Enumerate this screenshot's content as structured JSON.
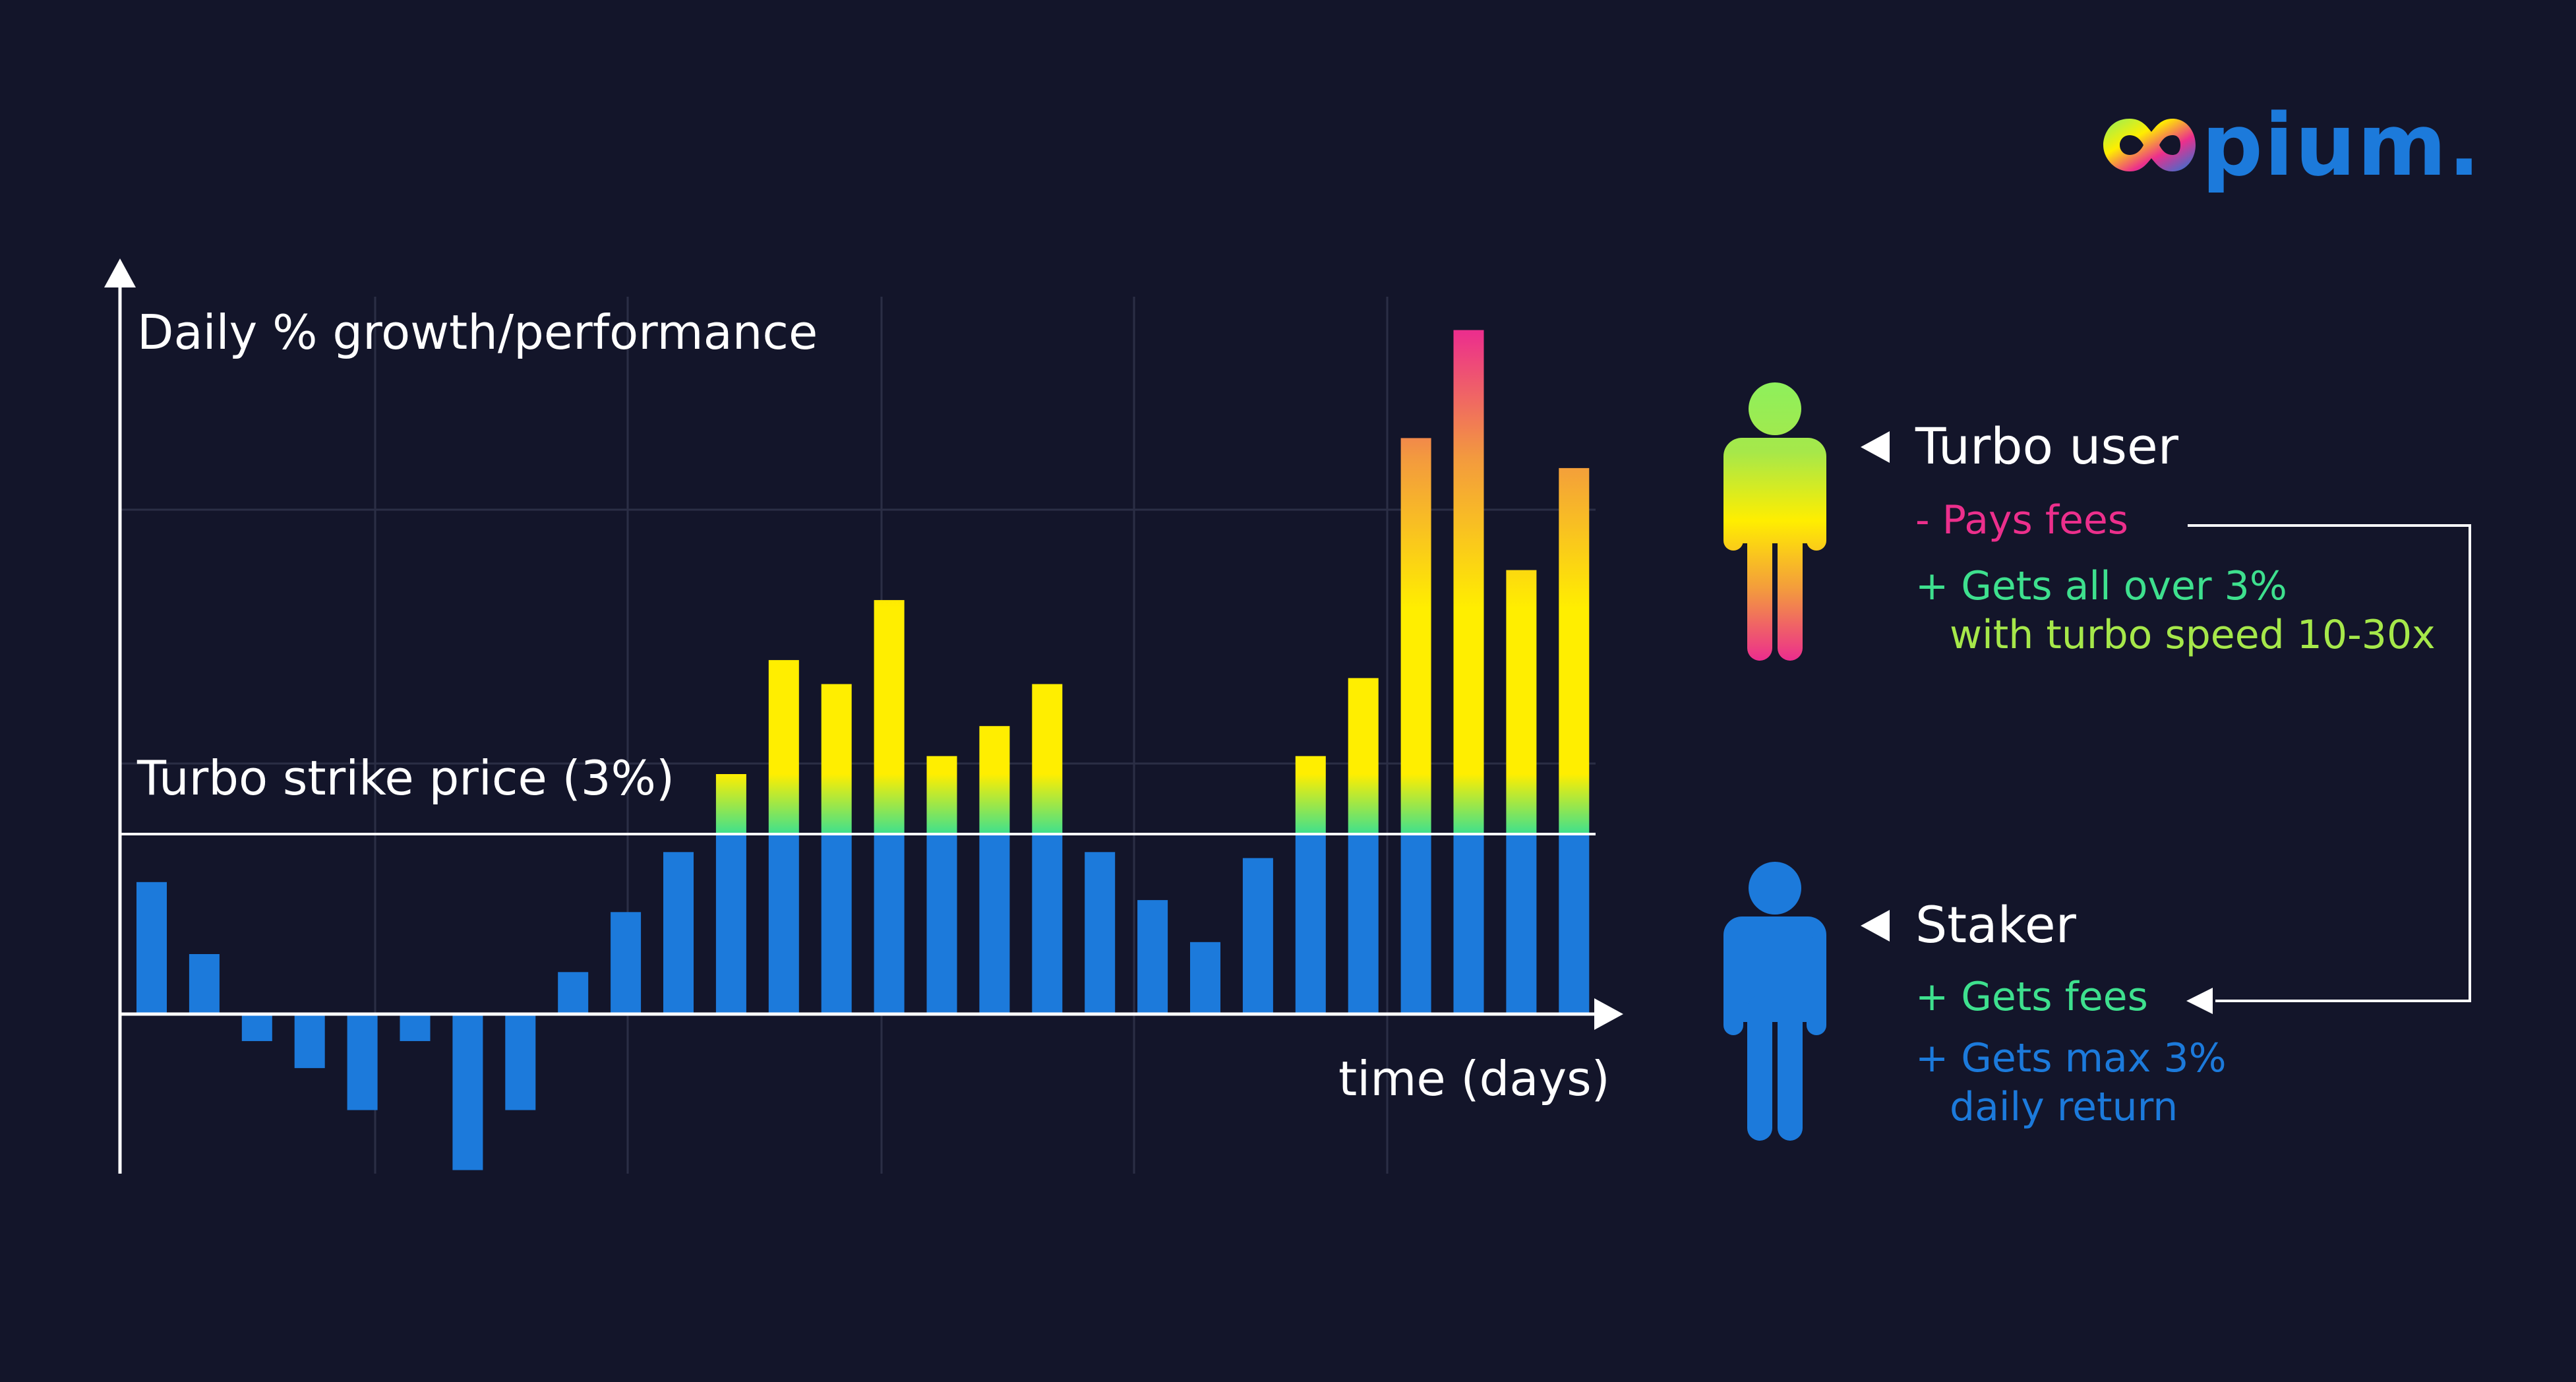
{
  "brand": {
    "logo_text": "pium."
  },
  "colors": {
    "background": "#13152a",
    "staker_blue": "#1c7adb",
    "pink": "#ec2f8c",
    "green": "#3ee08e",
    "yellow": "#ffee00",
    "white": "#ffffff"
  },
  "icons": [
    "turbo-user-person-icon",
    "staker-person-icon",
    "triangle-pointer-icon",
    "arrow-head-icon"
  ],
  "chart_data": {
    "type": "bar",
    "title": "",
    "ylabel": "Daily % growth/performance",
    "xlabel": "time (days)",
    "threshold": {
      "label": "Turbo strike price (3%)",
      "value": 3
    },
    "ylim": [
      -2.6,
      12.5
    ],
    "grid": true,
    "x": [
      1,
      2,
      3,
      4,
      5,
      6,
      7,
      8,
      9,
      10,
      11,
      12,
      13,
      14,
      15,
      16,
      17,
      18,
      19,
      20,
      21,
      22,
      23,
      24,
      25,
      26,
      27,
      28
    ],
    "values": [
      2.2,
      1.0,
      -0.45,
      -0.9,
      -1.6,
      -0.45,
      -2.6,
      -1.6,
      0.7,
      1.7,
      2.7,
      4.0,
      5.9,
      5.5,
      6.9,
      4.3,
      4.8,
      5.5,
      2.7,
      1.9,
      1.2,
      2.6,
      4.3,
      5.6,
      9.6,
      11.4,
      7.4,
      9.1
    ],
    "series": [
      {
        "name": "Staker",
        "rule": "min(value, 3)",
        "color": "#1c7adb"
      },
      {
        "name": "Turbo user",
        "rule": "value above 3",
        "gradient": [
          "#3ee08e",
          "#ffee00",
          "#ec2f8c"
        ]
      }
    ]
  },
  "legend": {
    "turbo": {
      "title": "Turbo user",
      "point1": "- Pays fees",
      "point2_line1": "+ Gets all over 3%",
      "point2_line2": "with turbo speed 10-30x"
    },
    "staker": {
      "title": "Staker",
      "point1": "+ Gets fees",
      "point2_line1": "+ Gets max 3%",
      "point2_line2": "daily return"
    }
  }
}
